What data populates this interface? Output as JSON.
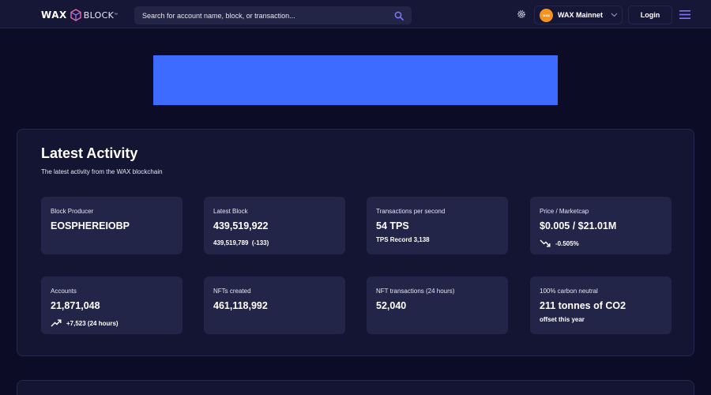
{
  "header": {
    "logo_wax": "WAX",
    "logo_block": "BLOCK",
    "logo_tm": "™",
    "search_placeholder": "Search for account name, block, or transaction...",
    "network": {
      "avatar_text": "wax",
      "label": "WAX Mainnet"
    },
    "login_label": "Login"
  },
  "colors": {
    "background": "#0c0c26",
    "topbar": "#161737",
    "card": "#222448",
    "banner": "#3e6bff",
    "search_icon": "#7e77f6",
    "network_avatar": "#f7931a"
  },
  "activity": {
    "title": "Latest Activity",
    "subtitle": "The latest activity from the WAX blockchain",
    "cards": [
      {
        "label": "Block Producer",
        "value": "EOSPHEREIOBP"
      },
      {
        "label": "Latest Block",
        "value": "439,519,922",
        "sub": "439,519,789  (-133)"
      },
      {
        "label": "Transactions per second",
        "value": "54 TPS",
        "sub": "TPS Record 3,138"
      },
      {
        "label": "Price / Marketcap",
        "value": "$0.005 / $21.01M",
        "sub": "-0.505%",
        "icon": "trend-down-icon"
      },
      {
        "label": "Accounts",
        "value": "21,871,048",
        "sub": "+7,523 (24 hours)",
        "icon": "trend-up-icon"
      },
      {
        "label": "NFTs created",
        "value": "461,118,992"
      },
      {
        "label": "NFT transactions (24 hours)",
        "value": "52,040"
      },
      {
        "label": "100% carbon neutral",
        "value": "211 tonnes of CO2",
        "sub": "offset this year"
      }
    ]
  }
}
